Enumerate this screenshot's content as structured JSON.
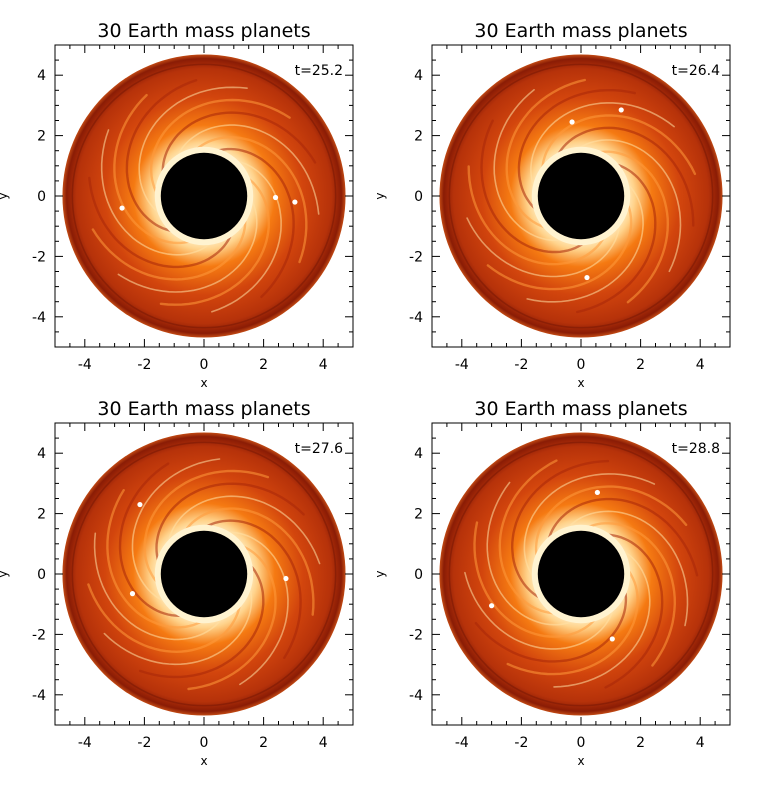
{
  "figure": {
    "panels": [
      {
        "title": "30 Earth mass planets",
        "time_label": "t=25.2",
        "xlabel": "x",
        "ylabel": "y",
        "planets": [
          [
            -2.75,
            -0.4
          ],
          [
            2.4,
            -0.05
          ],
          [
            3.05,
            -0.2
          ]
        ]
      },
      {
        "title": "30 Earth mass planets",
        "time_label": "t=26.4",
        "xlabel": "x",
        "ylabel": "y",
        "planets": [
          [
            -0.3,
            2.45
          ],
          [
            1.35,
            2.85
          ],
          [
            0.2,
            -2.7
          ]
        ]
      },
      {
        "title": "30 Earth mass planets",
        "time_label": "t=27.6",
        "xlabel": "x",
        "ylabel": "y",
        "planets": [
          [
            -2.15,
            2.3
          ],
          [
            -2.4,
            -0.65
          ],
          [
            2.75,
            -0.15
          ]
        ]
      },
      {
        "title": "30 Earth mass planets",
        "time_label": "t=28.8",
        "xlabel": "x",
        "ylabel": "y",
        "planets": [
          [
            0.55,
            2.7
          ],
          [
            -3.0,
            -1.05
          ],
          [
            1.05,
            -2.15
          ]
        ]
      }
    ],
    "axis": {
      "xlim": [
        -5,
        5
      ],
      "ylim": [
        -5,
        5
      ],
      "xticks": [
        -4,
        -2,
        0,
        2,
        4
      ],
      "yticks": [
        -4,
        -2,
        0,
        2,
        4
      ],
      "disk_outer_radius": 4.75,
      "disk_inner_radius": 1.45
    },
    "colors": {
      "hole": "#000000",
      "inner_glow": "#fff3d0",
      "mid": "#f57a12",
      "outer": "#b6320a",
      "edge": "#8a1c05",
      "planet": "#ffffff"
    }
  }
}
